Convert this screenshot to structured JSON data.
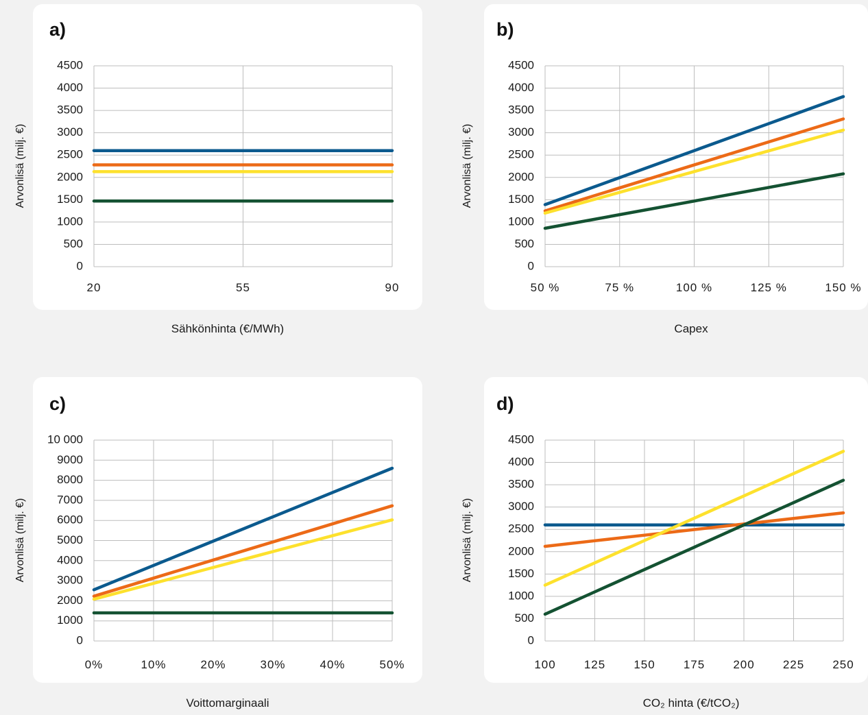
{
  "colors": {
    "blue": "#0b5a8e",
    "orange": "#ec6a17",
    "yellow": "#fde12d",
    "green": "#145232"
  },
  "chart_data": [
    {
      "type": "line",
      "title": "a)",
      "xlabel": "Sähkönhinta (€/MWh)",
      "ylabel": "Arvonlisä (milj. €)",
      "categories": [
        "20",
        "55",
        "90"
      ],
      "x": [
        20,
        55,
        90
      ],
      "ylim": [
        0,
        4500
      ],
      "yticks": [
        0,
        500,
        1000,
        1500,
        2000,
        2500,
        3000,
        3500,
        4000,
        4500
      ],
      "ytick_labels": [
        "0",
        "500",
        "1000",
        "1500",
        "2000",
        "2500",
        "3000",
        "3500",
        "4000",
        "4500"
      ],
      "grid": true,
      "series": [
        {
          "color": "#0b5a8e",
          "values": [
            2600,
            2600,
            2600
          ]
        },
        {
          "color": "#ec6a17",
          "values": [
            2280,
            2280,
            2280
          ]
        },
        {
          "color": "#fde12d",
          "values": [
            2130,
            2130,
            2130
          ]
        },
        {
          "color": "#145232",
          "values": [
            1470,
            1470,
            1470
          ]
        }
      ]
    },
    {
      "type": "line",
      "title": "b)",
      "xlabel": "Capex",
      "ylabel": "Arvonlisä (milj. €)",
      "categories": [
        "50 %",
        "75 %",
        "100 %",
        "125 %",
        "150 %"
      ],
      "x": [
        50,
        75,
        100,
        125,
        150
      ],
      "ylim": [
        0,
        4500
      ],
      "yticks": [
        0,
        500,
        1000,
        1500,
        2000,
        2500,
        3000,
        3500,
        4000,
        4500
      ],
      "ytick_labels": [
        "0",
        "500",
        "1000",
        "1500",
        "2000",
        "2500",
        "3000",
        "3500",
        "4000",
        "4500"
      ],
      "grid": true,
      "series": [
        {
          "color": "#0b5a8e",
          "values": [
            1390,
            1995,
            2600,
            3205,
            3810
          ]
        },
        {
          "color": "#ec6a17",
          "values": [
            1250,
            1765,
            2280,
            2795,
            3310
          ]
        },
        {
          "color": "#fde12d",
          "values": [
            1200,
            1665,
            2130,
            2595,
            3060
          ]
        },
        {
          "color": "#145232",
          "values": [
            860,
            1165,
            1470,
            1775,
            2080
          ]
        }
      ]
    },
    {
      "type": "line",
      "title": "c)",
      "xlabel": "Voittomarginaali",
      "ylabel": "Arvonlisä (milj. €)",
      "categories": [
        "0%",
        "10%",
        "20%",
        "30%",
        "40%",
        "50%"
      ],
      "x": [
        0,
        10,
        20,
        30,
        40,
        50
      ],
      "ylim": [
        0,
        10000
      ],
      "yticks": [
        0,
        1000,
        2000,
        3000,
        4000,
        5000,
        6000,
        7000,
        8000,
        9000,
        10000
      ],
      "ytick_labels": [
        "0",
        "1000",
        "2000",
        "3000",
        "4000",
        "5000",
        "6000",
        "7000",
        "8000",
        "9000",
        "10 000"
      ],
      "grid": true,
      "series": [
        {
          "color": "#0b5a8e",
          "values": [
            2550,
            3760,
            4970,
            6180,
            7390,
            8600
          ]
        },
        {
          "color": "#ec6a17",
          "values": [
            2230,
            3130,
            4030,
            4930,
            5830,
            6730
          ]
        },
        {
          "color": "#fde12d",
          "values": [
            2080,
            2870,
            3660,
            4450,
            5240,
            6030
          ]
        },
        {
          "color": "#145232",
          "values": [
            1400,
            1400,
            1400,
            1400,
            1400,
            1400
          ]
        }
      ]
    },
    {
      "type": "line",
      "title": "d)",
      "xlabel": "CO₂ hinta (€/tCO₂)",
      "ylabel": "Arvonlisä (milj. €)",
      "categories": [
        "100",
        "125",
        "150",
        "175",
        "200",
        "225",
        "250"
      ],
      "x": [
        100,
        125,
        150,
        175,
        200,
        225,
        250
      ],
      "ylim": [
        0,
        4500
      ],
      "yticks": [
        0,
        500,
        1000,
        1500,
        2000,
        2500,
        3000,
        3500,
        4000,
        4500
      ],
      "ytick_labels": [
        "0",
        "500",
        "1000",
        "1500",
        "2000",
        "2500",
        "3000",
        "3500",
        "4000",
        "4500"
      ],
      "grid": true,
      "series": [
        {
          "color": "#0b5a8e",
          "values": [
            2600,
            2600,
            2600,
            2600,
            2600,
            2600,
            2600
          ]
        },
        {
          "color": "#ec6a17",
          "values": [
            2120,
            2245,
            2370,
            2495,
            2620,
            2745,
            2870
          ]
        },
        {
          "color": "#fde12d",
          "values": [
            1250,
            1750,
            2250,
            2750,
            3250,
            3750,
            4250
          ]
        },
        {
          "color": "#145232",
          "values": [
            600,
            1100,
            1600,
            2100,
            2600,
            3100,
            3600
          ]
        }
      ]
    }
  ]
}
